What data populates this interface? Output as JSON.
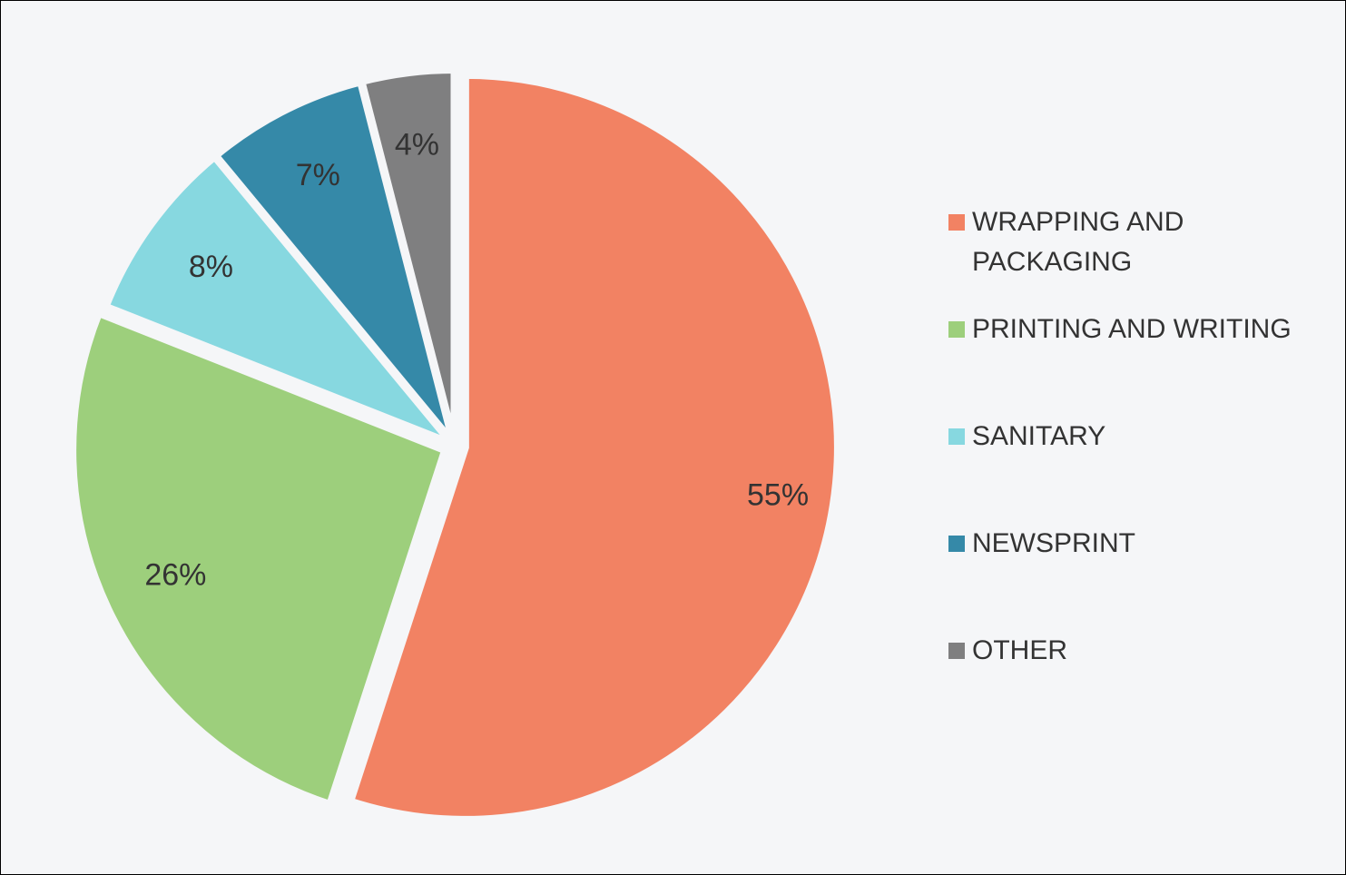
{
  "chart_data": {
    "type": "pie",
    "categories": [
      "WRAPPING AND PACKAGING",
      "PRINTING AND WRITING",
      "SANITARY",
      "NEWSPRINT",
      "OTHER"
    ],
    "values": [
      55,
      26,
      8,
      7,
      4
    ],
    "value_labels": [
      "55%",
      "26%",
      "8%",
      "7%",
      "4%"
    ],
    "colors": [
      "#f28263",
      "#9dcf7c",
      "#87d8e0",
      "#3589a8",
      "#7f7f80"
    ]
  }
}
